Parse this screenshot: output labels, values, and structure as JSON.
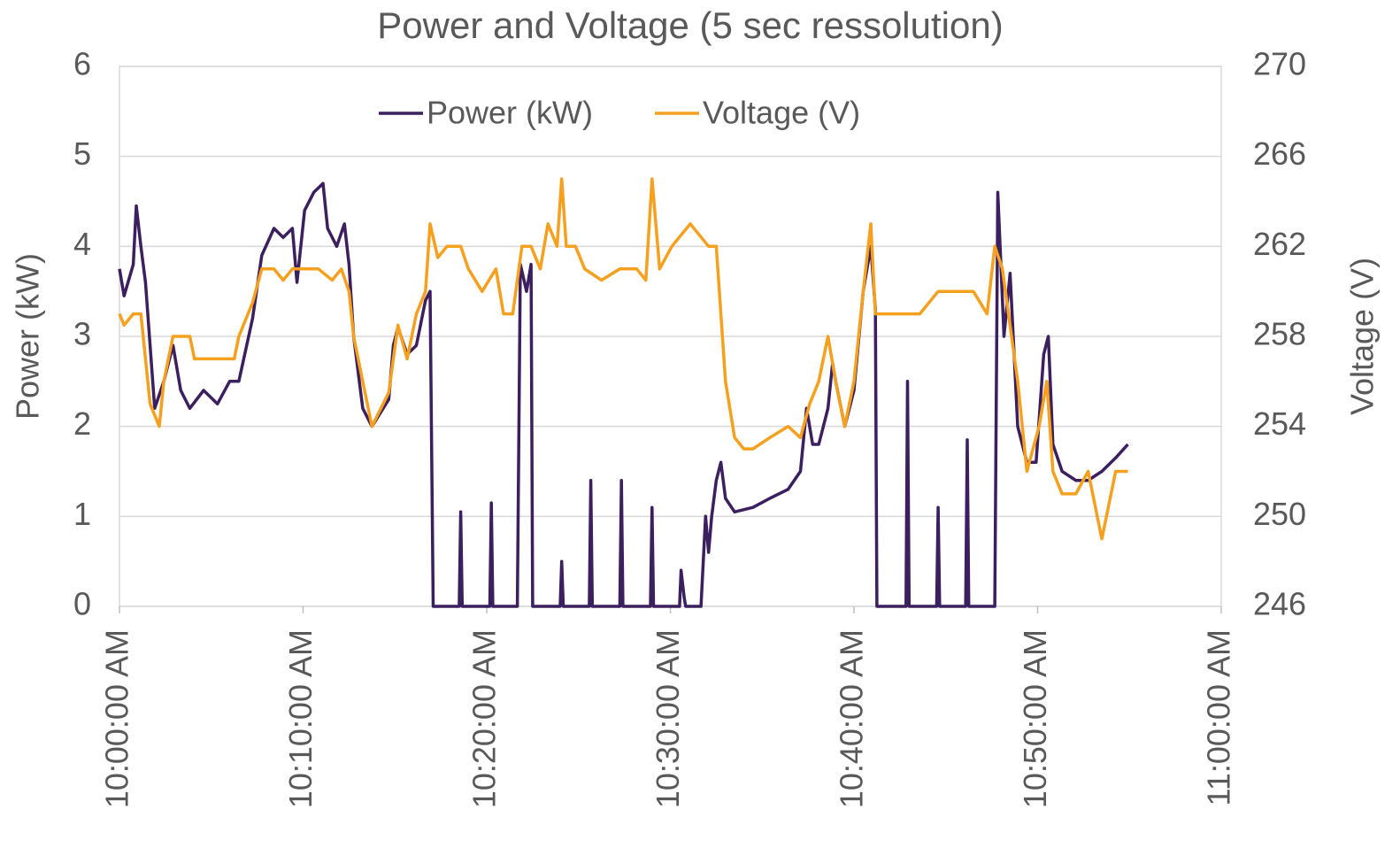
{
  "chart_data": {
    "type": "line",
    "title": "Power and Voltage (5 sec ressolution)",
    "ylabel": "Power (kW)",
    "y2label": "Voltage (V)",
    "xlim": [
      "10:00:00 AM",
      "11:00:00 AM"
    ],
    "xticks": [
      "10:00:00 AM",
      "10:10:00 AM",
      "10:20:00 AM",
      "10:30:00 AM",
      "10:40:00 AM",
      "10:50:00 AM",
      "11:00:00 AM"
    ],
    "ylim": [
      0,
      6
    ],
    "yticks": [
      0,
      1,
      2,
      3,
      4,
      5,
      6
    ],
    "y2lim": [
      246,
      270
    ],
    "y2ticks": [
      246,
      250,
      254,
      258,
      262,
      266,
      270
    ],
    "grid": true,
    "legend": "top",
    "series": [
      {
        "name": "Power (kW)",
        "color": "#3b1f5e",
        "axis": "y",
        "x": [
          "10:00:00 AM",
          "10:00:15 AM",
          "10:00:45 AM",
          "10:00:55 AM",
          "10:01:10 AM",
          "10:01:25 AM",
          "10:01:55 AM",
          "10:02:25 AM",
          "10:02:55 AM",
          "10:03:20 AM",
          "10:03:50 AM",
          "10:04:35 AM",
          "10:05:20 AM",
          "10:06:00 AM",
          "10:06:30 AM",
          "10:07:15 AM",
          "10:07:45 AM",
          "10:08:25 AM",
          "10:08:55 AM",
          "10:09:25 AM",
          "10:09:40 AM",
          "10:10:05 AM",
          "10:10:35 AM",
          "10:11:05 AM",
          "10:11:20 AM",
          "10:11:50 AM",
          "10:12:15 AM",
          "10:12:30 AM",
          "10:12:45 AM",
          "10:13:15 AM",
          "10:13:45 AM",
          "10:14:40 AM",
          "10:14:55 AM",
          "10:15:10 AM",
          "10:15:40 AM",
          "10:16:10 AM",
          "10:16:40 AM",
          "10:16:55 AM",
          "10:17:05 AM",
          "10:18:30 AM",
          "10:18:35 AM",
          "10:18:40 AM",
          "10:20:10 AM",
          "10:20:15 AM",
          "10:20:20 AM",
          "10:21:40 AM",
          "10:21:50 AM",
          "10:22:10 AM",
          "10:22:25 AM",
          "10:22:30 AM",
          "10:24:00 AM",
          "10:24:05 AM",
          "10:24:10 AM",
          "10:25:35 AM",
          "10:25:40 AM",
          "10:25:45 AM",
          "10:27:15 AM",
          "10:27:20 AM",
          "10:27:25 AM",
          "10:28:55 AM",
          "10:29:00 AM",
          "10:29:05 AM",
          "10:30:30 AM",
          "10:30:35 AM",
          "10:30:45 AM",
          "10:30:50 AM",
          "10:31:40 AM",
          "10:31:55 AM",
          "10:32:05 AM",
          "10:32:15 AM",
          "10:32:30 AM",
          "10:32:45 AM",
          "10:33:00 AM",
          "10:33:30 AM",
          "10:34:30 AM",
          "10:35:25 AM",
          "10:36:25 AM",
          "10:37:05 AM",
          "10:37:25 AM",
          "10:37:45 AM",
          "10:38:05 AM",
          "10:38:35 AM",
          "10:38:50 AM",
          "10:39:00 AM",
          "10:39:30 AM",
          "10:40:00 AM",
          "10:40:30 AM",
          "10:40:55 AM",
          "10:41:10 AM",
          "10:41:15 AM",
          "10:42:50 AM",
          "10:42:55 AM",
          "10:43:00 AM",
          "10:44:30 AM",
          "10:44:35 AM",
          "10:44:40 AM",
          "10:46:05 AM",
          "10:46:10 AM",
          "10:46:15 AM",
          "10:47:40 AM",
          "10:47:50 AM",
          "10:48:10 AM",
          "10:48:30 AM",
          "10:48:55 AM",
          "10:49:25 AM",
          "10:49:55 AM",
          "10:50:20 AM",
          "10:50:35 AM",
          "10:50:50 AM",
          "10:51:20 AM",
          "10:52:05 AM",
          "10:52:45 AM",
          "10:53:30 AM",
          "10:54:15 AM",
          "10:54:55 AM"
        ],
        "values": [
          3.75,
          3.45,
          3.8,
          4.45,
          4.0,
          3.6,
          2.2,
          2.5,
          2.9,
          2.4,
          2.2,
          2.4,
          2.25,
          2.5,
          2.5,
          3.2,
          3.9,
          4.2,
          4.1,
          4.2,
          3.6,
          4.4,
          4.6,
          4.7,
          4.2,
          4.0,
          4.25,
          3.8,
          3.0,
          2.2,
          2.0,
          2.3,
          2.9,
          3.1,
          2.8,
          2.9,
          3.4,
          3.5,
          0,
          0,
          1.05,
          0,
          0,
          1.15,
          0,
          0,
          3.8,
          3.5,
          3.8,
          0,
          0,
          0.5,
          0,
          0,
          1.4,
          0,
          0,
          1.4,
          0,
          0,
          1.1,
          0,
          0,
          0.4,
          0.1,
          0,
          0,
          1.0,
          0.6,
          1.0,
          1.4,
          1.6,
          1.2,
          1.05,
          1.1,
          1.2,
          1.3,
          1.5,
          2.2,
          1.8,
          1.8,
          2.2,
          2.7,
          2.5,
          2.0,
          2.4,
          3.5,
          4.0,
          3.3,
          0,
          0,
          2.5,
          0,
          0,
          1.1,
          0,
          0,
          1.85,
          0,
          0,
          4.6,
          3.0,
          3.7,
          2.0,
          1.6,
          1.6,
          2.8,
          3.0,
          1.8,
          1.5,
          1.4,
          1.4,
          1.5,
          1.65,
          1.8
        ]
      },
      {
        "name": "Voltage (V)",
        "color": "#f5a01e",
        "axis": "y2",
        "x": [
          "10:00:00 AM",
          "10:00:15 AM",
          "10:00:45 AM",
          "10:01:10 AM",
          "10:01:40 AM",
          "10:02:10 AM",
          "10:02:25 AM",
          "10:02:55 AM",
          "10:03:50 AM",
          "10:04:05 AM",
          "10:04:50 AM",
          "10:05:30 AM",
          "10:06:15 AM",
          "10:06:30 AM",
          "10:07:15 AM",
          "10:07:45 AM",
          "10:08:25 AM",
          "10:08:55 AM",
          "10:09:25 AM",
          "10:09:55 AM",
          "10:10:20 AM",
          "10:10:50 AM",
          "10:11:35 AM",
          "10:12:05 AM",
          "10:12:30 AM",
          "10:12:45 AM",
          "10:13:15 AM",
          "10:13:45 AM",
          "10:14:40 AM",
          "10:15:10 AM",
          "10:15:40 AM",
          "10:16:10 AM",
          "10:16:40 AM",
          "10:16:55 AM",
          "10:17:20 AM",
          "10:17:50 AM",
          "10:18:35 AM",
          "10:19:00 AM",
          "10:19:45 AM",
          "10:20:30 AM",
          "10:20:55 AM",
          "10:21:25 AM",
          "10:21:55 AM",
          "10:22:25 AM",
          "10:22:55 AM",
          "10:23:20 AM",
          "10:23:50 AM",
          "10:24:05 AM",
          "10:24:20 AM",
          "10:24:50 AM",
          "10:25:20 AM",
          "10:26:15 AM",
          "10:27:15 AM",
          "10:28:10 AM",
          "10:28:40 AM",
          "10:29:00 AM",
          "10:29:25 AM",
          "10:30:05 AM",
          "10:31:05 AM",
          "10:32:05 AM",
          "10:32:30 AM",
          "10:33:00 AM",
          "10:33:30 AM",
          "10:34:00 AM",
          "10:34:30 AM",
          "10:35:25 AM",
          "10:36:25 AM",
          "10:37:05 AM",
          "10:37:35 AM",
          "10:38:05 AM",
          "10:38:35 AM",
          "10:39:00 AM",
          "10:39:30 AM",
          "10:40:00 AM",
          "10:40:30 AM",
          "10:40:55 AM",
          "10:41:10 AM",
          "10:41:40 AM",
          "10:42:40 AM",
          "10:43:35 AM",
          "10:44:35 AM",
          "10:45:30 AM",
          "10:46:30 AM",
          "10:47:15 AM",
          "10:47:40 AM",
          "10:48:05 AM",
          "10:48:25 AM",
          "10:48:55 AM",
          "10:49:25 AM",
          "10:50:05 AM",
          "10:50:30 AM",
          "10:50:50 AM",
          "10:51:20 AM",
          "10:52:05 AM",
          "10:52:45 AM",
          "10:53:15 AM",
          "10:53:30 AM",
          "10:54:00 AM",
          "10:54:15 AM",
          "10:54:55 AM"
        ],
        "values": [
          259,
          258.5,
          259,
          259,
          255,
          254,
          256,
          258,
          258,
          257,
          257,
          257,
          257,
          258,
          259.5,
          261,
          261,
          260.5,
          261,
          261,
          261,
          261,
          260.5,
          261,
          260,
          258,
          256,
          254,
          255.5,
          258.5,
          257,
          259,
          260,
          263,
          261.5,
          262,
          262,
          261,
          260,
          261,
          259,
          259,
          262,
          262,
          261,
          263,
          262,
          265,
          262,
          262,
          261,
          260.5,
          261,
          261,
          260.5,
          265,
          261,
          262,
          263,
          262,
          262,
          256,
          253.5,
          253,
          253,
          253.5,
          254,
          253.5,
          255,
          256,
          258,
          256,
          254,
          256,
          260,
          263,
          259,
          259,
          259,
          259,
          260,
          260,
          260,
          259,
          262,
          261,
          259,
          256,
          252,
          254,
          256,
          252,
          251,
          251,
          252,
          250,
          249,
          251,
          252,
          252
        ]
      }
    ]
  }
}
